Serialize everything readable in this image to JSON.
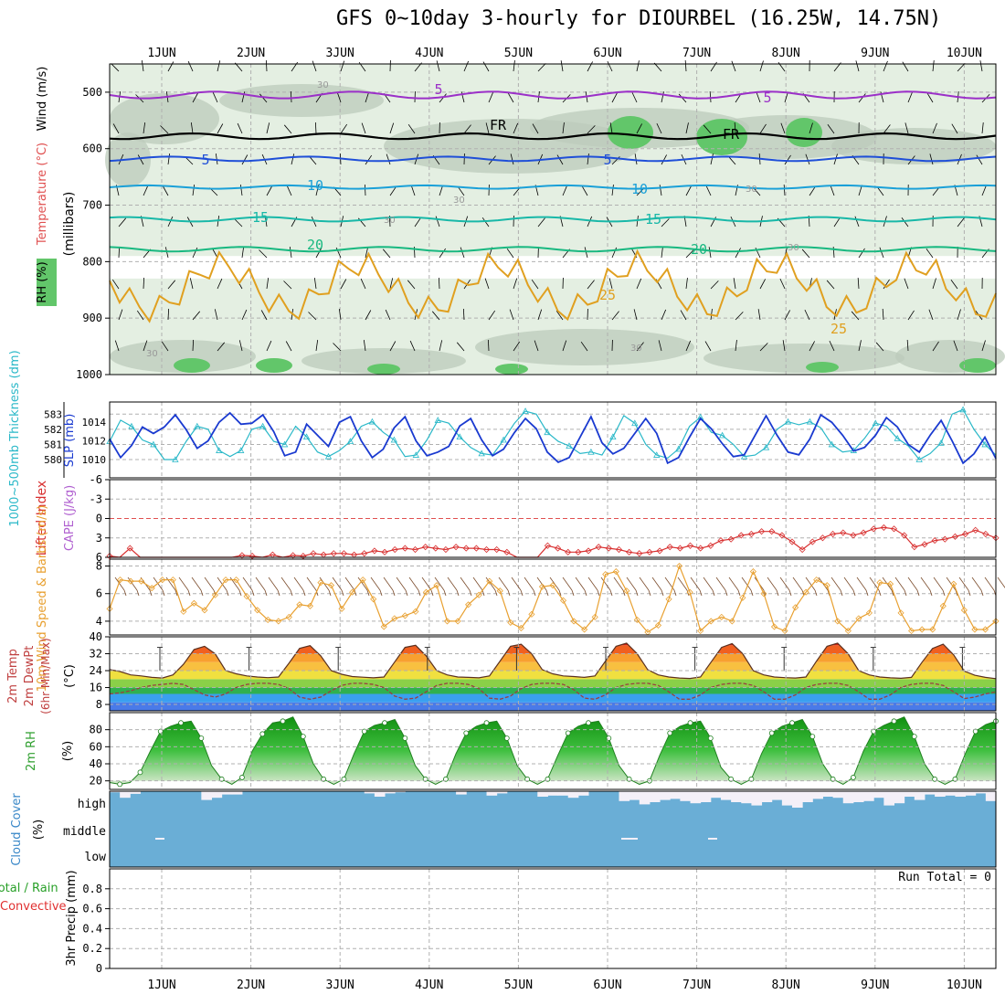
{
  "title": "GFS 0~10day 3-hourly for DIOURBEL (16.25W, 14.75N)",
  "colors": {
    "grid": "#b0b0b0",
    "rh_light": "#e4efe2",
    "rh_mid": "#bccbbb",
    "rh_green": "#62c66a",
    "temp_purple": "#9b30c8",
    "temp_blue": "#1f4fd8",
    "temp_cyan": "#1aa0d8",
    "temp_teal": "#18b8a8",
    "temp_green": "#18b880",
    "temp_orange": "#e0a020",
    "temp_red": "#e05020",
    "thick": "#2ab8c8",
    "slp": "#1a3ad0",
    "lifted": "#d83030",
    "cape": "#b060d0",
    "wind10": "#e8a030",
    "cloud": "#6aaed6",
    "precip_rain": "#28a028",
    "precip_conv": "#e03030"
  },
  "chart_data": [
    {
      "type": "line",
      "panel": "upper-air",
      "dates": [
        "1JUN",
        "2JUN",
        "3JUN",
        "4JUN",
        "5JUN",
        "6JUN",
        "7JUN",
        "8JUN",
        "9JUN",
        "10JUN"
      ],
      "ylabel": "(millibars)",
      "y_ticks": [
        "500",
        "600",
        "700",
        "800",
        "900",
        "1000"
      ],
      "y_range": [
        450,
        1000
      ],
      "legend": [
        "RH (%)",
        "Temperature (°C)",
        "Wind (m/s)"
      ],
      "isotherm_labels": [
        "5",
        "5",
        "FR",
        "FR",
        "5",
        "5",
        "10",
        "10",
        "15",
        "15",
        "20",
        "20",
        "25",
        "25"
      ],
      "rh_labels": [
        "30",
        "30",
        "30",
        "30",
        "30",
        "30",
        "30"
      ],
      "isotherms": [
        {
          "name": "5",
          "color": "temp_purple",
          "p": 505,
          "amp": 6
        },
        {
          "name": "FR",
          "color": "#000000",
          "p": 578,
          "amp": 5
        },
        {
          "name": "5",
          "color": "temp_blue",
          "p": 618,
          "amp": 4
        },
        {
          "name": "10",
          "color": "temp_cyan",
          "p": 668,
          "amp": 3
        },
        {
          "name": "15",
          "color": "temp_teal",
          "p": 725,
          "amp": 4
        },
        {
          "name": "20",
          "color": "temp_green",
          "p": 778,
          "amp": 4
        },
        {
          "name": "25",
          "color": "temp_orange",
          "p": 845,
          "amp": 40
        }
      ]
    },
    {
      "type": "line",
      "panel": "thickness-slp",
      "ylabel_left": "1000~500mb Thickness (dm)",
      "ylabel_right": "SLP (mb)",
      "y_ticks_left": [
        "580",
        "581",
        "582",
        "583"
      ],
      "y_ticks_right": [
        "1010",
        "1012",
        "1014"
      ],
      "series": [
        {
          "name": "Thickness",
          "axis": "left",
          "values": [
            581.2,
            582.6,
            582.2,
            581.3,
            581.0,
            580.0,
            580.0,
            581.2,
            582.2,
            582.0,
            580.6,
            580.2,
            580.6,
            582.0,
            582.2,
            581.2,
            581.0,
            582.2,
            581.5,
            580.5,
            580.2,
            580.6,
            581.2,
            582.2,
            582.5,
            581.8,
            581.3,
            580.2,
            580.3,
            581.3,
            582.6,
            582.4,
            581.5,
            580.8,
            580.4,
            580.3,
            581.3,
            582.4,
            583.2,
            583.0,
            581.8,
            581.2,
            580.9,
            580.4,
            580.5,
            580.3,
            581.5,
            582.9,
            582.4,
            581.0,
            580.3,
            580.1,
            580.7,
            582.2,
            582.8,
            581.8,
            581.6,
            581.0,
            580.2,
            580.3,
            580.8,
            582.0,
            582.5,
            582.3,
            582.5,
            582.1,
            581.0,
            580.5,
            580.6,
            581.4,
            582.4,
            582.2,
            581.4,
            580.9,
            580.0,
            580.4,
            581.1,
            583.0,
            583.3,
            582.0,
            581.0,
            580.3
          ]
        },
        {
          "name": "SLP",
          "axis": "right",
          "values": [
            1012.2,
            1010.2,
            1011.5,
            1013.5,
            1012.8,
            1013.5,
            1014.8,
            1013.2,
            1011.2,
            1012.0,
            1014.0,
            1015.0,
            1013.8,
            1013.9,
            1014.8,
            1013.0,
            1010.4,
            1010.8,
            1013.8,
            1012.6,
            1011.4,
            1014.0,
            1014.6,
            1012.0,
            1010.2,
            1011.1,
            1013.4,
            1014.6,
            1012.0,
            1010.4,
            1010.8,
            1011.4,
            1013.6,
            1014.4,
            1012.1,
            1010.4,
            1011.1,
            1012.9,
            1014.4,
            1013.3,
            1010.8,
            1009.7,
            1010.2,
            1012.4,
            1014.6,
            1011.8,
            1010.6,
            1011.2,
            1012.8,
            1014.4,
            1012.8,
            1009.6,
            1010.2,
            1012.4,
            1014.4,
            1013.3,
            1011.7,
            1010.3,
            1010.5,
            1012.6,
            1014.7,
            1012.6,
            1010.8,
            1010.5,
            1012.2,
            1014.8,
            1014.0,
            1012.6,
            1010.9,
            1011.3,
            1012.6,
            1014.5,
            1013.5,
            1011.6,
            1010.8,
            1012.6,
            1014.2,
            1012.0,
            1009.6,
            1010.6,
            1012.4,
            1010.1
          ]
        }
      ]
    },
    {
      "type": "line",
      "panel": "lifted-index",
      "ylabel": "Lifted Index",
      "ylabel2": "CAPE (J/kg)",
      "y_ticks": [
        "-6",
        "-3",
        "0",
        "3",
        "6"
      ],
      "y_range": [
        -6,
        6
      ],
      "series": [
        {
          "name": "Lifted Index",
          "values": [
            5.8,
            6.0,
            4.6,
            6.0,
            6.0,
            6.0,
            6.0,
            6.0,
            6.0,
            6.0,
            6.0,
            6.0,
            6.0,
            5.7,
            5.8,
            6.0,
            5.6,
            6.0,
            5.7,
            5.8,
            5.4,
            5.6,
            5.4,
            5.4,
            5.6,
            5.4,
            5.0,
            5.2,
            4.8,
            4.6,
            4.8,
            4.4,
            4.6,
            4.8,
            4.4,
            4.6,
            4.6,
            4.8,
            4.8,
            5.2,
            6.0,
            6.0,
            6.0,
            4.2,
            4.6,
            5.2,
            5.2,
            5.0,
            4.4,
            4.6,
            4.8,
            5.2,
            5.4,
            5.2,
            5.0,
            4.4,
            4.6,
            4.2,
            4.6,
            4.2,
            3.4,
            3.2,
            2.6,
            2.4,
            2.0,
            2.0,
            2.6,
            3.6,
            4.8,
            3.6,
            3.0,
            2.4,
            2.2,
            2.6,
            2.2,
            1.6,
            1.4,
            1.6,
            2.6,
            4.4,
            4.0,
            3.4,
            3.2,
            2.8,
            2.4,
            1.8,
            2.4,
            3.0
          ]
        }
      ]
    },
    {
      "type": "line",
      "panel": "wind10m",
      "ylabel": "10m Wind Speed & Barbs (m/s)",
      "y_ticks": [
        "4",
        "6",
        "8"
      ],
      "y_range": [
        3,
        8.5
      ],
      "series": [
        {
          "name": "10m Wind Speed",
          "values": [
            4.9,
            7.0,
            6.9,
            6.9,
            6.4,
            7.0,
            7.0,
            4.7,
            5.3,
            4.8,
            5.9,
            7.0,
            7.0,
            5.8,
            4.8,
            4.1,
            4.0,
            4.3,
            5.2,
            5.1,
            6.8,
            6.6,
            4.9,
            6.1,
            7.0,
            5.6,
            3.6,
            4.2,
            4.4,
            4.7,
            6.1,
            6.6,
            4.0,
            4.0,
            5.2,
            5.9,
            6.9,
            6.2,
            3.9,
            3.5,
            4.5,
            6.5,
            6.6,
            5.5,
            4.0,
            3.4,
            4.3,
            7.4,
            7.6,
            6.2,
            4.1,
            3.2,
            3.7,
            5.6,
            8.0,
            6.1,
            3.3,
            4.0,
            4.3,
            4.0,
            5.7,
            7.6,
            6.0,
            3.6,
            3.3,
            5.0,
            6.1,
            7.0,
            6.6,
            4.0,
            3.3,
            4.2,
            4.6,
            6.8,
            6.7,
            4.6,
            3.3,
            3.4,
            3.4,
            5.1,
            6.7,
            4.8,
            3.4,
            3.4,
            4.0
          ]
        }
      ]
    },
    {
      "type": "area",
      "panel": "temp2m",
      "ylabel": "2m Temp 2m DewPt (6hr Min/Max) (°C)",
      "y_ticks": [
        "8",
        "16",
        "24",
        "32",
        "40"
      ],
      "y_range": [
        5,
        40
      ],
      "series": [
        {
          "name": "2m Temp",
          "values": [
            24.5,
            23.6,
            22.0,
            21.5,
            20.8,
            20.5,
            22.0,
            27.0,
            34.0,
            35.5,
            32.0,
            24.0,
            22.5,
            21.5,
            21.0,
            20.7,
            21.0,
            27.5,
            34.5,
            35.8,
            31.0,
            24.0,
            22.3,
            21.2,
            20.9,
            20.6,
            21.0,
            28.0,
            35.0,
            36.0,
            31.0,
            24.0,
            22.0,
            21.0,
            20.8,
            20.6,
            21.5,
            28.5,
            35.5,
            36.5,
            32.0,
            24.5,
            22.5,
            21.5,
            21.2,
            20.8,
            21.5,
            28.5,
            35.5,
            37.0,
            32.0,
            24.5,
            22.0,
            21.0,
            20.5,
            20.3,
            21.0,
            28.0,
            35.0,
            36.8,
            32.0,
            24.0,
            22.0,
            21.0,
            20.7,
            20.5,
            21.0,
            28.5,
            35.5,
            37.0,
            32.0,
            24.0,
            22.0,
            21.0,
            20.6,
            20.4,
            20.8,
            28.0,
            34.5,
            36.5,
            31.5,
            23.8,
            21.8,
            20.8,
            20.2
          ]
        },
        {
          "name": "2m DewPt",
          "values": [
            13.0,
            13.5,
            14.5,
            16.0,
            17.0,
            17.5,
            18.0,
            17.5,
            15.0,
            12.5,
            11.5,
            13.0,
            16.0,
            17.5,
            18.0,
            18.0,
            17.5,
            15.5,
            11.5,
            10.5,
            11.5,
            14.5,
            17.0,
            18.0,
            18.0,
            17.5,
            16.0,
            12.0,
            10.5,
            11.0,
            14.0,
            17.0,
            18.0,
            18.0,
            17.5,
            15.5,
            11.0,
            10.5,
            12.0,
            15.5,
            17.5,
            18.0,
            18.0,
            17.5,
            15.0,
            11.0,
            10.5,
            12.5,
            16.0,
            17.5,
            18.0,
            18.0,
            17.0,
            14.0,
            10.5,
            10.5,
            12.5,
            16.0,
            17.5,
            18.0,
            18.0,
            17.0,
            14.0,
            10.5,
            10.5,
            12.5,
            16.0,
            17.5,
            18.0,
            18.0,
            17.0,
            14.0,
            10.5,
            10.5,
            12.5,
            16.0,
            17.5,
            18.0,
            18.0,
            17.0,
            14.0,
            10.8,
            11.5,
            13.0,
            14.0
          ]
        }
      ]
    },
    {
      "type": "area",
      "panel": "rh2m",
      "ylabel": "2m RH (%)",
      "y_ticks": [
        "20",
        "40",
        "60",
        "80"
      ],
      "y_range": [
        10,
        100
      ],
      "series": [
        {
          "name": "2m RH",
          "values": [
            18,
            16,
            18,
            30,
            55,
            78,
            84,
            88,
            90,
            70,
            38,
            22,
            16,
            24,
            55,
            75,
            88,
            90,
            95,
            72,
            40,
            22,
            16,
            22,
            52,
            78,
            85,
            88,
            92,
            70,
            38,
            22,
            16,
            22,
            52,
            76,
            84,
            88,
            90,
            70,
            38,
            22,
            16,
            22,
            50,
            76,
            84,
            88,
            90,
            70,
            38,
            22,
            16,
            20,
            50,
            76,
            84,
            88,
            90,
            70,
            36,
            22,
            16,
            22,
            52,
            76,
            84,
            88,
            92,
            72,
            40,
            22,
            16,
            24,
            55,
            78,
            85,
            90,
            95,
            72,
            40,
            22,
            16,
            22,
            52,
            78,
            86,
            90
          ]
        }
      ]
    },
    {
      "type": "bar",
      "panel": "cloud-cover",
      "ylabel": "Cloud Cover (%)",
      "y_ticks": [
        "high",
        "middle",
        "low"
      ],
      "series": [
        {
          "name": "high",
          "values": [
            0.95,
            0.7,
            0.88,
            1,
            1,
            1,
            1,
            1,
            1,
            0.6,
            0.7,
            0.85,
            0.85,
            1,
            1,
            1,
            1,
            1,
            1,
            1,
            1,
            1,
            1,
            1,
            1,
            0.9,
            0.75,
            0.9,
            0.95,
            1,
            1,
            1,
            1,
            1,
            0.85,
            1,
            1,
            0.8,
            0.9,
            1,
            1,
            1,
            0.75,
            0.8,
            0.8,
            0.7,
            0.8,
            1,
            1,
            1,
            0.55,
            0.6,
            0.4,
            0.5,
            0.6,
            0.65,
            0.55,
            0.45,
            0.5,
            0.7,
            0.6,
            0.5,
            0.45,
            0.35,
            0.5,
            0.6,
            0.35,
            0.25,
            0.5,
            0.65,
            0.75,
            0.7,
            0.45,
            0.5,
            0.55,
            0.7,
            0.35,
            0.45,
            0.75,
            0.6,
            0.85,
            0.75,
            0.8,
            0.75,
            0.8,
            0.9,
            0.55
          ]
        }
      ]
    },
    {
      "type": "bar",
      "panel": "precip",
      "ylabel": "3hr Precip (mm)",
      "legend": [
        "Total / Rain",
        "Convective"
      ],
      "annotation": "Run Total = 0",
      "y_ticks": [
        "0",
        "0.2",
        "0.4",
        "0.6",
        "0.8"
      ],
      "y_range": [
        0,
        1
      ],
      "series": [
        {
          "name": "Total / Rain",
          "values": []
        },
        {
          "name": "Convective",
          "values": []
        }
      ]
    }
  ]
}
